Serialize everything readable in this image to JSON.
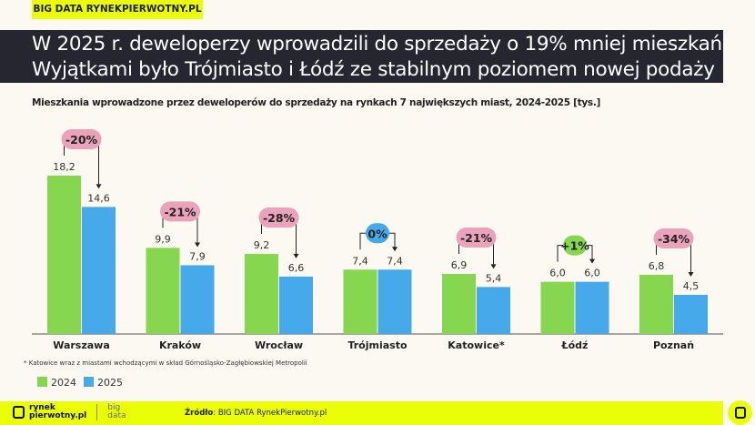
{
  "tag": "BIG DATA RYNEKPIERWOTNY.PL",
  "title_line1": "W 2025 r. deweloperzy wprowadzili do sprzedaży o 19% mniej mieszkań.",
  "title_line2": "Wyjątkami było Trójmiasto i Łódź ze stabilnym poziomem nowej podaży",
  "chart_data": {
    "type": "bar",
    "title": "Mieszkania wprowadzone przez deweloperów do sprzedaży na rynkach 7 największych miast, 2024-2025 [tys.]",
    "categories": [
      "Warszawa",
      "Kraków",
      "Wrocław",
      "Trójmiasto",
      "Katowice*",
      "Łódź",
      "Poznań"
    ],
    "series": [
      {
        "name": "2024",
        "color": "#86d64f",
        "values": [
          18.2,
          9.9,
          9.2,
          7.4,
          6.9,
          6.0,
          6.8
        ],
        "labels": [
          "18,2",
          "9,9",
          "9,2",
          "7,4",
          "6,9",
          "6,0",
          "6,8"
        ]
      },
      {
        "name": "2025",
        "color": "#46a9ea",
        "values": [
          14.6,
          7.9,
          6.6,
          7.4,
          5.4,
          6.0,
          4.5
        ],
        "labels": [
          "14,6",
          "7,9",
          "6,6",
          "7,4",
          "5,4",
          "6,0",
          "4,5"
        ]
      }
    ],
    "changes": [
      {
        "label": "-20%",
        "color": "#eba3bb"
      },
      {
        "label": "-21%",
        "color": "#eba3bb"
      },
      {
        "label": "-28%",
        "color": "#eba3bb"
      },
      {
        "label": "0%",
        "color": "#46a9ea"
      },
      {
        "label": "-21%",
        "color": "#eba3bb"
      },
      {
        "label": "+1%",
        "color": "#86d64f"
      },
      {
        "label": "-34%",
        "color": "#eba3bb"
      }
    ],
    "ylim": [
      0,
      20
    ],
    "grid": false,
    "legend": "bottom-left"
  },
  "note": "* Katowice wraz z miastami wchodzącymi w skład Górnośląsko-Zagłębiowskiej Metropolii",
  "footer": {
    "logo_line1": "rynek",
    "logo_line2": "pierwotny.pl",
    "big": "big",
    "data": "data",
    "source_label": "Źródło",
    "source_text": ": BIG DATA RynekPierwotny.pl"
  }
}
